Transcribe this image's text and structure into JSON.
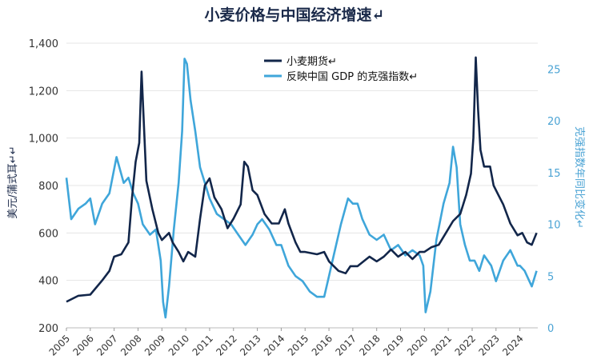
{
  "chart_data": {
    "type": "line",
    "title": "小麦价格与中国经济增速↵",
    "ylabel_left": "美元/蒲式耳↵↵",
    "ylabel_right": "克强指数年同比变化↵",
    "left_axis": {
      "min": 200,
      "max": 1400,
      "ticks": [
        "200",
        "400",
        "600",
        "800",
        "1,000",
        "1,200",
        "1,400"
      ]
    },
    "right_axis": {
      "min": 0,
      "max": 27.5,
      "ticks": [
        "0",
        "5",
        "10",
        "15",
        "20",
        "25"
      ]
    },
    "x_ticks": [
      "2005",
      "2006",
      "2007",
      "2008",
      "2009",
      "2010",
      "2011",
      "2012",
      "2013",
      "2014",
      "2015",
      "2016",
      "2017",
      "2018",
      "2019",
      "2020",
      "2021",
      "2022",
      "2023",
      "2024"
    ],
    "x_range": [
      2005.0,
      2024.75
    ],
    "grid": true,
    "legend_position": "top-center",
    "series": [
      {
        "name": "小麦期货↵",
        "axis": "left",
        "color": "#12264a",
        "x": [
          2005.0,
          2005.5,
          2006.0,
          2006.5,
          2006.8,
          2007.0,
          2007.3,
          2007.6,
          2007.75,
          2007.9,
          2008.05,
          2008.15,
          2008.35,
          2008.6,
          2008.85,
          2009.0,
          2009.3,
          2009.45,
          2009.7,
          2009.9,
          2010.1,
          2010.4,
          2010.6,
          2010.8,
          2011.0,
          2011.2,
          2011.5,
          2011.75,
          2012.0,
          2012.3,
          2012.45,
          2012.6,
          2012.8,
          2013.0,
          2013.3,
          2013.6,
          2013.9,
          2014.15,
          2014.3,
          2014.6,
          2014.8,
          2015.0,
          2015.5,
          2015.8,
          2016.0,
          2016.4,
          2016.7,
          2016.9,
          2017.2,
          2017.45,
          2017.7,
          2018.0,
          2018.3,
          2018.6,
          2018.9,
          2019.2,
          2019.5,
          2019.8,
          2020.0,
          2020.3,
          2020.6,
          2020.9,
          2021.2,
          2021.5,
          2021.75,
          2021.95,
          2022.05,
          2022.15,
          2022.25,
          2022.35,
          2022.5,
          2022.75,
          2022.9,
          2023.1,
          2023.3,
          2023.6,
          2023.9,
          2024.1,
          2024.3,
          2024.5,
          2024.7
        ],
        "y": [
          310,
          335,
          340,
          400,
          440,
          500,
          510,
          560,
          750,
          900,
          980,
          1280,
          820,
          700,
          600,
          570,
          600,
          560,
          520,
          480,
          520,
          500,
          660,
          800,
          830,
          750,
          700,
          620,
          660,
          720,
          900,
          880,
          780,
          760,
          680,
          640,
          640,
          700,
          640,
          560,
          520,
          520,
          510,
          520,
          480,
          440,
          430,
          460,
          460,
          480,
          500,
          480,
          500,
          530,
          500,
          520,
          490,
          520,
          520,
          540,
          550,
          600,
          650,
          680,
          760,
          850,
          1000,
          1340,
          1120,
          950,
          880,
          880,
          800,
          760,
          720,
          640,
          590,
          600,
          560,
          550,
          600
        ]
      },
      {
        "name": "反映中国 GDP 的克强指数↵",
        "axis": "right",
        "color": "#3fa6da",
        "x": [
          2005.0,
          2005.2,
          2005.5,
          2005.8,
          2006.0,
          2006.2,
          2006.5,
          2006.8,
          2007.1,
          2007.4,
          2007.6,
          2007.8,
          2008.0,
          2008.2,
          2008.5,
          2008.75,
          2008.95,
          2009.05,
          2009.15,
          2009.3,
          2009.5,
          2009.7,
          2009.85,
          2009.95,
          2010.05,
          2010.2,
          2010.4,
          2010.6,
          2010.8,
          2011.0,
          2011.3,
          2011.6,
          2011.9,
          2012.2,
          2012.5,
          2012.8,
          2013.0,
          2013.2,
          2013.5,
          2013.8,
          2014.0,
          2014.3,
          2014.6,
          2014.9,
          2015.2,
          2015.5,
          2015.8,
          2016.0,
          2016.2,
          2016.5,
          2016.8,
          2017.0,
          2017.2,
          2017.4,
          2017.7,
          2018.0,
          2018.3,
          2018.6,
          2018.9,
          2019.2,
          2019.5,
          2019.8,
          2019.95,
          2020.05,
          2020.25,
          2020.5,
          2020.8,
          2021.05,
          2021.2,
          2021.35,
          2021.5,
          2021.7,
          2021.9,
          2022.1,
          2022.3,
          2022.5,
          2022.8,
          2023.0,
          2023.3,
          2023.6,
          2023.9,
          2024.0,
          2024.2,
          2024.5,
          2024.7
        ],
        "y": [
          14.5,
          10.5,
          11.5,
          12.0,
          12.5,
          10.0,
          12.0,
          13.0,
          16.5,
          14.0,
          14.5,
          13.0,
          12.0,
          10.0,
          9.0,
          9.5,
          6.5,
          2.5,
          1.0,
          4.0,
          9.5,
          14.0,
          19.0,
          26.0,
          25.5,
          22.0,
          19.0,
          15.5,
          14.0,
          12.5,
          11.0,
          10.5,
          10.0,
          9.0,
          8.0,
          9.0,
          10.0,
          10.5,
          9.5,
          8.0,
          8.0,
          6.0,
          5.0,
          4.5,
          3.5,
          3.0,
          3.0,
          5.0,
          7.0,
          10.0,
          12.5,
          12.0,
          12.0,
          10.5,
          9.0,
          8.5,
          9.0,
          7.5,
          8.0,
          7.0,
          7.5,
          7.0,
          6.0,
          1.5,
          3.5,
          8.5,
          12.0,
          14.0,
          17.5,
          15.5,
          10.0,
          8.0,
          6.5,
          6.5,
          5.5,
          7.0,
          6.0,
          4.5,
          6.5,
          7.5,
          6.0,
          6.0,
          5.5,
          4.0,
          5.5
        ]
      }
    ]
  }
}
